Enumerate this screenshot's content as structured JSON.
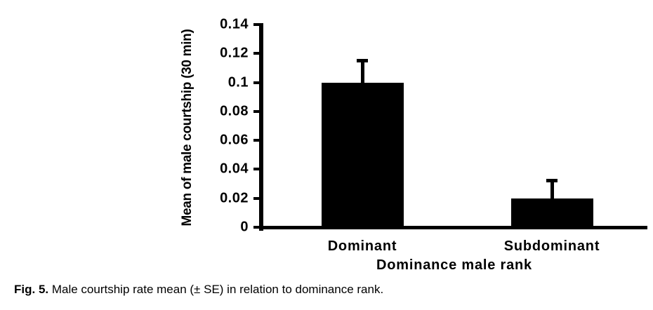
{
  "figure": {
    "caption_prefix": "Fig. 5.",
    "caption_text": " Male courtship rate mean (± SE) in relation to dominance rank."
  },
  "chart_data": {
    "type": "bar",
    "categories": [
      "Dominant",
      "Subdominant"
    ],
    "values": [
      0.1,
      0.02
    ],
    "errors_se_upper": [
      0.015,
      0.012
    ],
    "title": "",
    "xlabel": "Dominance male rank",
    "ylabel": "Mean of male courtship (30 min)",
    "ylim": [
      0,
      0.14
    ],
    "ytick_values": [
      0,
      0.02,
      0.04,
      0.06,
      0.08,
      0.1,
      0.12,
      0.14
    ],
    "ytick_labels": [
      "0",
      "0.02",
      "0.04",
      "0.06",
      "0.08",
      "0.1",
      "0.12",
      "0.14"
    ],
    "grid": false,
    "legend": "none",
    "bar_color": "#000000",
    "error_bar_color": "#000000",
    "axis_color": "#000000",
    "background_color": "#ffffff"
  }
}
